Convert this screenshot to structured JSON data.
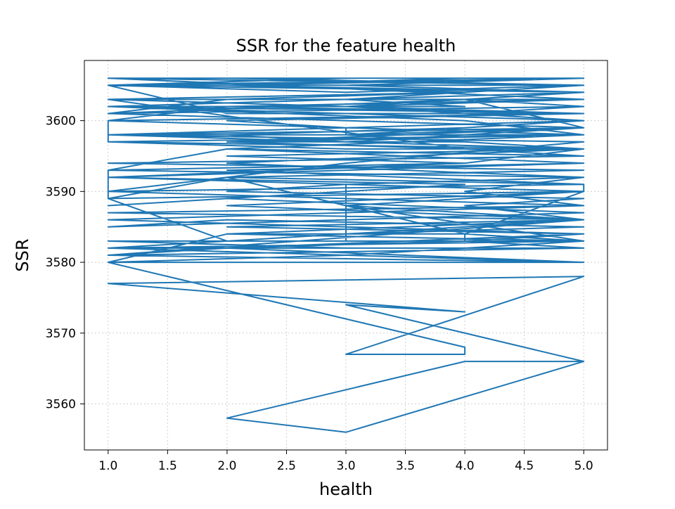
{
  "chart_data": {
    "type": "line",
    "title": "SSR for the feature health",
    "xlabel": "health",
    "ylabel": "SSR",
    "xlim": [
      0.8,
      5.2
    ],
    "ylim": [
      3553.5,
      3608.5
    ],
    "x_ticks": [
      "1.0",
      "1.5",
      "2.0",
      "2.5",
      "3.0",
      "3.5",
      "4.0",
      "4.5",
      "5.0"
    ],
    "y_ticks": [
      "3560",
      "3570",
      "3580",
      "3590",
      "3600"
    ],
    "grid": true,
    "grid_style": "dotted",
    "line_color": "#1f77b4",
    "series": [
      {
        "values_x": [
          5,
          4,
          2,
          3,
          5,
          3,
          4,
          1,
          5,
          3,
          4,
          4,
          1,
          2,
          3,
          5,
          1,
          2,
          4,
          4,
          5,
          3,
          2,
          4,
          5,
          3,
          3,
          2,
          1,
          1,
          2,
          5,
          4,
          1,
          3,
          5,
          1,
          5,
          3,
          2,
          4,
          5,
          4,
          2,
          1,
          3,
          5,
          2,
          4,
          2,
          5,
          3,
          2,
          1,
          1,
          3,
          5,
          4,
          2,
          5,
          3,
          1,
          2,
          4,
          5,
          1,
          3,
          1,
          5,
          2,
          5,
          4,
          5,
          1,
          4,
          5,
          3,
          1,
          5,
          3,
          1,
          2,
          1,
          5,
          5,
          2,
          5,
          1,
          4,
          3,
          1,
          2,
          5,
          3,
          1,
          2,
          5,
          3,
          4,
          5,
          1,
          3,
          5,
          1,
          5,
          1,
          3,
          5,
          2,
          5,
          4,
          5,
          2,
          3,
          5,
          1,
          4,
          2,
          5,
          1,
          5,
          3,
          3,
          2,
          5,
          1,
          4,
          3,
          4,
          2,
          5,
          1,
          5,
          2,
          4,
          1,
          5,
          3,
          5,
          1,
          3,
          5,
          2,
          4,
          5,
          1,
          5,
          2,
          5,
          1,
          3,
          5,
          1,
          5,
          2,
          5,
          4,
          5,
          1,
          5,
          2,
          5,
          3,
          5,
          1,
          5,
          2,
          5,
          4,
          1,
          5,
          3,
          5,
          2,
          5,
          1,
          5,
          3,
          5,
          4,
          1,
          5,
          2,
          5,
          3,
          1,
          5,
          2,
          5,
          1,
          5,
          4,
          5,
          2,
          5,
          1,
          5,
          3,
          5,
          1,
          5,
          2,
          5,
          4,
          5
        ],
        "values_y": [
          3566,
          3566,
          3558,
          3556,
          3566,
          3574,
          3573,
          3577,
          3578,
          3567,
          3567,
          3568,
          3580,
          3584,
          3584,
          3586,
          3581,
          3582,
          3583,
          3584,
          3583,
          3588,
          3592,
          3584,
          3590,
          3591,
          3583,
          3583,
          3589,
          3593,
          3596,
          3595,
          3596,
          3603,
          3602,
          3600,
          3598,
          3599,
          3597,
          3598,
          3599,
          3600,
          3601,
          3601,
          3605,
          3604,
          3605,
          3606,
          3606,
          3605,
          3604,
          3602,
          3602,
          3600,
          3597,
          3596,
          3596,
          3597,
          3597,
          3599,
          3600,
          3601,
          3603,
          3604,
          3605,
          3605,
          3606,
          3606,
          3603,
          3602,
          3601,
          3601,
          3602,
          3601,
          3603,
          3599,
          3598,
          3598,
          3597,
          3594,
          3590,
          3592,
          3589,
          3590,
          3591,
          3593,
          3594,
          3592,
          3591,
          3590,
          3588,
          3589,
          3587,
          3586,
          3585,
          3586,
          3585,
          3584,
          3584,
          3583,
          3583,
          3582,
          3582,
          3581,
          3580,
          3580,
          3581,
          3583,
          3584,
          3586,
          3588,
          3589,
          3590,
          3591,
          3592,
          3593,
          3594,
          3595,
          3596,
          3597,
          3598,
          3598,
          3599,
          3600,
          3601,
          3602,
          3602,
          3603,
          3604,
          3605,
          3605,
          3606,
          3606,
          3605,
          3604,
          3603,
          3603,
          3602,
          3601,
          3600,
          3599,
          3598,
          3597,
          3596,
          3595,
          3594,
          3593,
          3592,
          3591,
          3590,
          3589,
          3588,
          3587,
          3586,
          3585,
          3584,
          3583,
          3582,
          3582,
          3583,
          3584,
          3586,
          3588,
          3590,
          3592,
          3594,
          3596,
          3598,
          3600,
          3602,
          3604,
          3605,
          3606,
          3605,
          3604,
          3602,
          3600,
          3598,
          3596,
          3594,
          3592,
          3590,
          3588,
          3586,
          3584,
          3582,
          3580,
          3582,
          3584,
          3586,
          3588,
          3590,
          3592,
          3594,
          3596,
          3598,
          3600,
          3602,
          3604,
          3605,
          3606,
          3605,
          3604,
          3603,
          3602
        ]
      }
    ]
  }
}
